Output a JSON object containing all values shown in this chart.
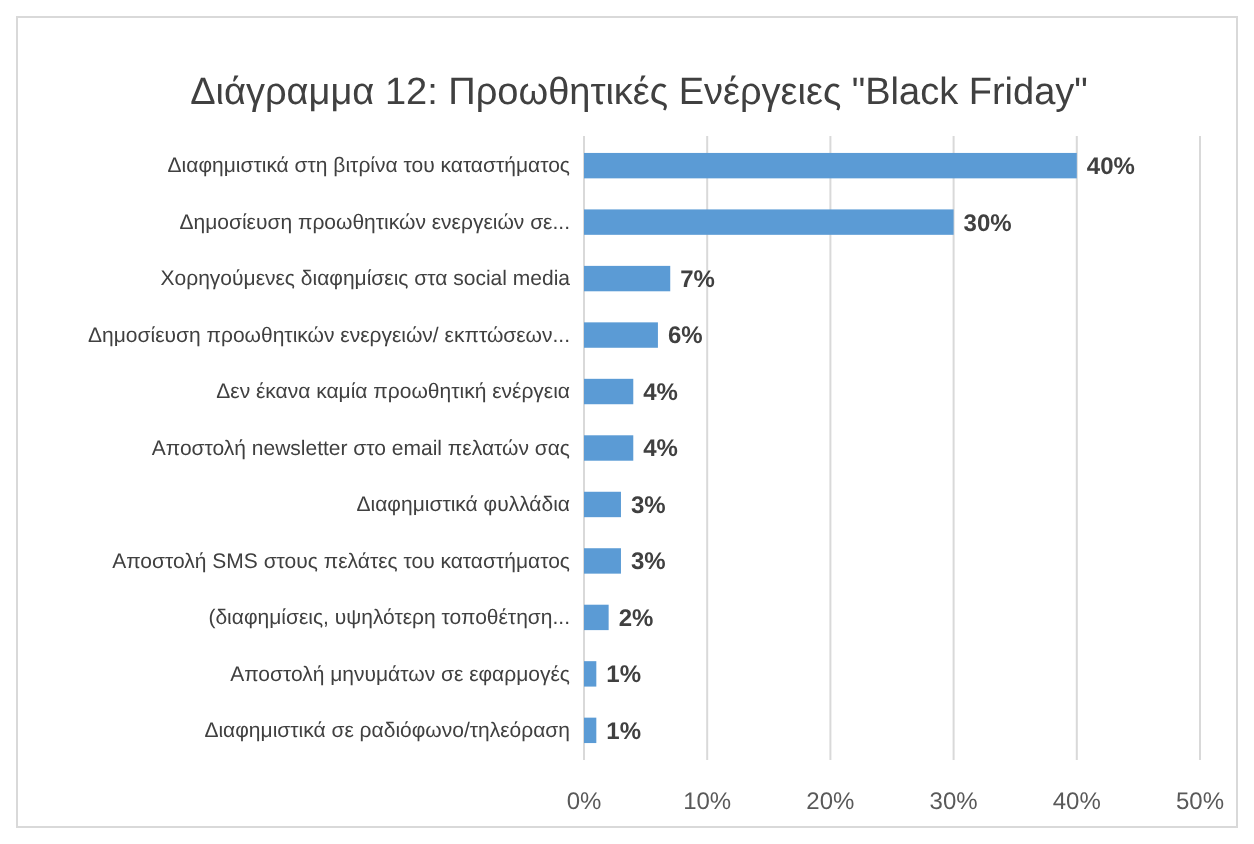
{
  "chart_data": {
    "type": "bar",
    "orientation": "horizontal",
    "title": "Διάγραμμα 12: Προωθητικές Ενέργειες \"Black Friday\"",
    "categories": [
      "Διαφημιστικά στη βιτρίνα του καταστήματος",
      "Δημοσίευση προωθητικών ενεργειών σε...",
      "Χορηγούμενες διαφημίσεις στα social media",
      "Δημοσίευση προωθητικών ενεργειών/ εκπτώσεων...",
      "Δεν έκανα καμία προωθητική ενέργεια",
      "Αποστολή newsletter στο email πελατών σας",
      "Διαφημιστικά φυλλάδια",
      "Αποστολή SMS στους πελάτες του καταστήματος",
      "(διαφημίσεις, υψηλότερη τοποθέτηση...",
      "Αποστολή μηνυμάτων σε εφαρμογές",
      "Διαφημιστικά σε ραδιόφωνο/τηλεόραση"
    ],
    "values": [
      40,
      30,
      7,
      6,
      4,
      4,
      3,
      3,
      2,
      1,
      1
    ],
    "value_labels": [
      "40%",
      "30%",
      "7%",
      "6%",
      "4%",
      "4%",
      "3%",
      "3%",
      "2%",
      "1%",
      "1%"
    ],
    "color": "#5b9bd5",
    "xlim": [
      0,
      50
    ],
    "xticks": [
      {
        "value": 0,
        "label": "0%"
      },
      {
        "value": 10,
        "label": "10%"
      },
      {
        "value": 20,
        "label": "20%"
      },
      {
        "value": 30,
        "label": "30%"
      },
      {
        "value": 40,
        "label": "40%"
      },
      {
        "value": 50,
        "label": "50%"
      }
    ],
    "grid": "x"
  }
}
